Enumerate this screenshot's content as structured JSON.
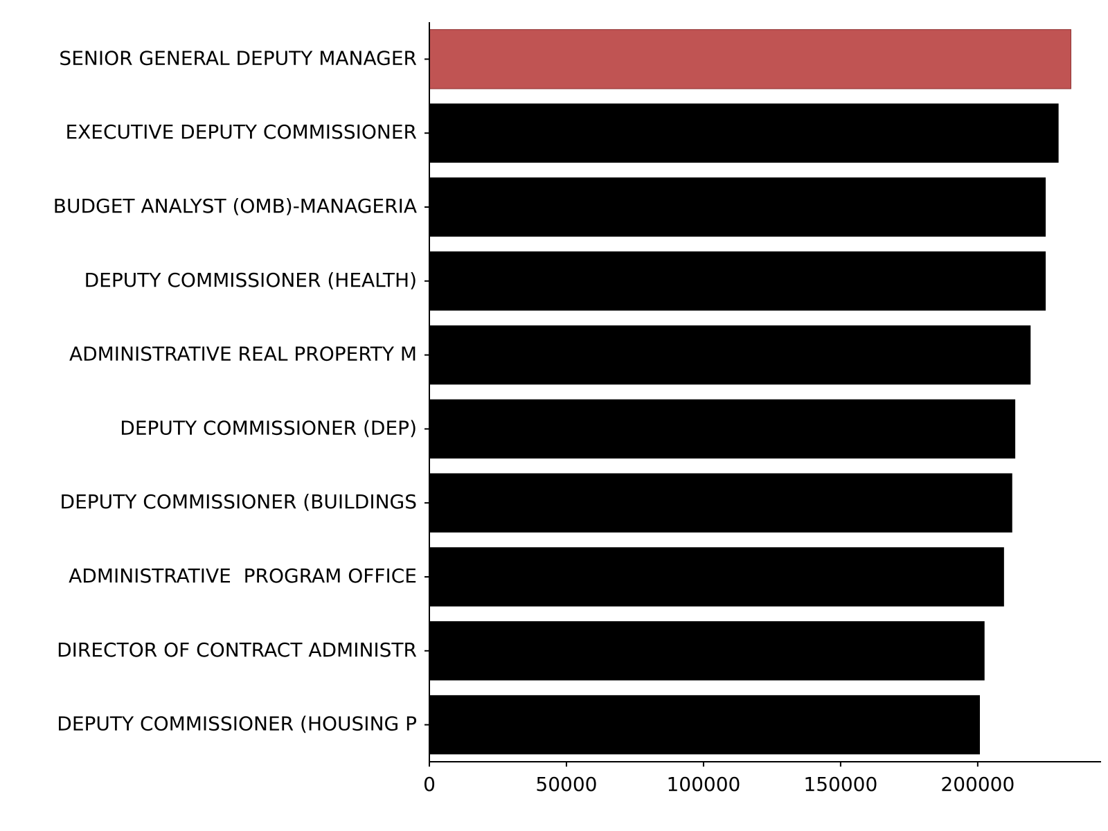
{
  "chart_data": {
    "type": "bar",
    "orientation": "horizontal",
    "categories": [
      "SENIOR GENERAL DEPUTY MANAGER",
      "EXECUTIVE DEPUTY COMMISSIONER",
      "BUDGET ANALYST (OMB)-MANAGERIA",
      "DEPUTY COMMISSIONER (HEALTH)",
      "ADMINISTRATIVE REAL PROPERTY M",
      "DEPUTY COMMISSIONER (DEP)",
      "DEPUTY COMMISSIONER (BUILDINGS",
      "ADMINISTRATIVE  PROGRAM OFFICE",
      "DIRECTOR OF CONTRACT ADMINISTR",
      "DEPUTY COMMISSIONER (HOUSING P"
    ],
    "values": [
      234000,
      229500,
      224800,
      224800,
      219300,
      213700,
      212600,
      209600,
      202500,
      200800
    ],
    "highlight_index": 0,
    "colors": {
      "bar": "#000000",
      "highlight": "#C05453",
      "highlight_edge": "#8B2E2E",
      "axis": "#000000"
    },
    "x_ticks": [
      0,
      50000,
      100000,
      150000,
      200000
    ],
    "xlim": [
      0,
      245000
    ],
    "title": "",
    "xlabel": "",
    "ylabel": "",
    "grid": false,
    "spines": [
      "left",
      "bottom"
    ]
  }
}
